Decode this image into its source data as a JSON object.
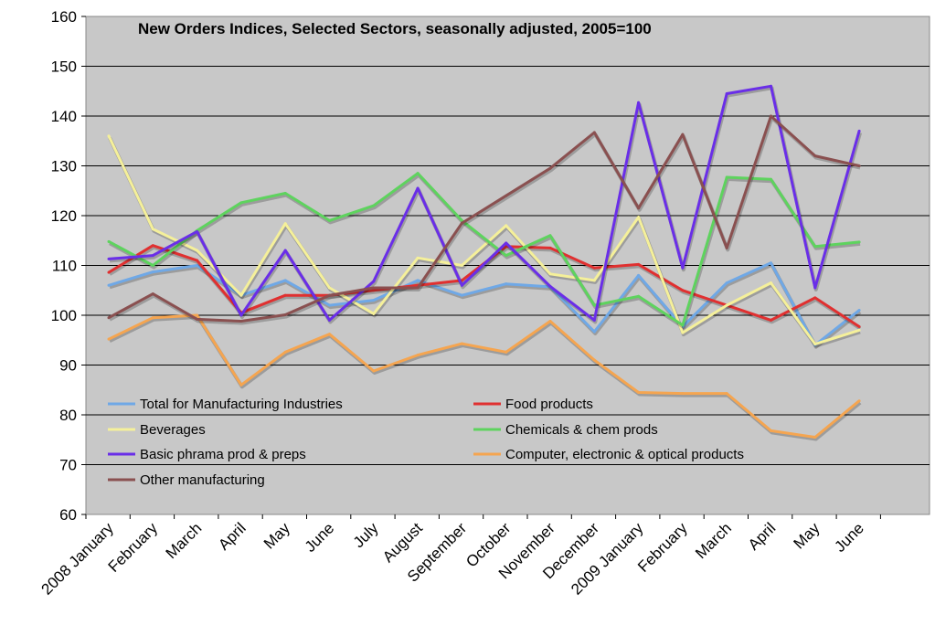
{
  "chart_data": {
    "type": "line",
    "title": "New Orders Indices, Selected Sectors, seasonally adjusted, 2005=100",
    "xlabel": "",
    "ylabel": "",
    "ylim": [
      60,
      160
    ],
    "yticks": [
      60,
      70,
      80,
      90,
      100,
      110,
      120,
      130,
      140,
      150,
      160
    ],
    "grid": true,
    "legend_position": "bottom-left inside plot",
    "categories": [
      "2008 January",
      "February",
      "March",
      "April",
      "May",
      "June",
      "July",
      "August",
      "September",
      "October",
      "November",
      "December",
      "2009 January",
      "February",
      "March",
      "April",
      "May",
      "June"
    ],
    "series": [
      {
        "name": "Total for Manufacturing Industries",
        "color": "#6fa8e6",
        "values": [
          106,
          108.7,
          110,
          104,
          107,
          102,
          103,
          107,
          104,
          106.3,
          105.7,
          96.7,
          108,
          97.7,
          106.5,
          110.5,
          94,
          101
        ]
      },
      {
        "name": "Food products",
        "color": "#e03030",
        "values": [
          108.6,
          114,
          111,
          100.5,
          104,
          104,
          105,
          106,
          107,
          113.8,
          113.5,
          109.5,
          110.2,
          105,
          102,
          99,
          103.5,
          97.7
        ]
      },
      {
        "name": "Beverages",
        "color": "#f5f09a",
        "values": [
          136,
          117.3,
          113,
          104,
          118.4,
          105.5,
          100.3,
          111.5,
          110,
          118,
          108.3,
          107,
          119.7,
          96.5,
          102,
          106.5,
          94.2,
          97
        ]
      },
      {
        "name": "Chemicals & chem prods",
        "color": "#5ed35e",
        "values": [
          114.8,
          110,
          117,
          122.6,
          124.5,
          119,
          122,
          128.5,
          119,
          112,
          116,
          102,
          103.8,
          98,
          127.7,
          127.3,
          113.8,
          114.7
        ]
      },
      {
        "name": "Basic phrama prod & preps",
        "color": "#6a2ee8",
        "values": [
          111.3,
          112,
          116.8,
          100,
          113,
          99,
          106.8,
          125.5,
          106,
          114.5,
          105.8,
          99,
          142.7,
          109.5,
          144.5,
          146,
          105.5,
          137
        ]
      },
      {
        "name": "Computer, electronic & optical products",
        "color": "#f5a550",
        "values": [
          95.2,
          99.5,
          100,
          86,
          92.6,
          96.2,
          88.8,
          92,
          94.3,
          92.6,
          98.8,
          91,
          84.5,
          84.3,
          84.3,
          76.8,
          75.5,
          82.8
        ]
      },
      {
        "name": "Other manufacturing",
        "color": "#8a5050",
        "values": [
          99.5,
          104.3,
          99.2,
          98.8,
          100.1,
          104,
          105.5,
          105.5,
          118.5,
          124,
          129.5,
          136.7,
          121.5,
          136.3,
          113.5,
          140,
          132,
          130
        ]
      }
    ]
  }
}
